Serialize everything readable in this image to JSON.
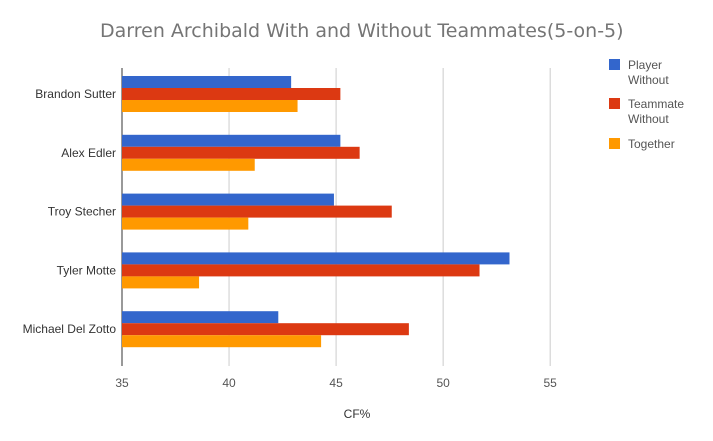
{
  "chart_data": {
    "type": "bar",
    "orientation": "horizontal",
    "title": "Darren Archibald With and Without Teammates(5-on-5)",
    "xlabel": "CF%",
    "ylabel": "",
    "xlim": [
      35,
      57
    ],
    "xticks": [
      35,
      40,
      45,
      50,
      55
    ],
    "grid": true,
    "legend_position": "right",
    "categories": [
      "Brandon Sutter",
      "Alex Edler",
      "Troy Stecher",
      "Tyler Motte",
      "Michael Del Zotto"
    ],
    "series": [
      {
        "name": "Player Without",
        "legend_lines": [
          "Player",
          "Without"
        ],
        "color": "#3366cc",
        "values": [
          42.9,
          45.2,
          44.9,
          53.1,
          42.3
        ]
      },
      {
        "name": "Teammate Without",
        "legend_lines": [
          "Teammate",
          "Without"
        ],
        "color": "#dc3912",
        "values": [
          45.2,
          46.1,
          47.6,
          51.7,
          48.4
        ]
      },
      {
        "name": "Together",
        "legend_lines": [
          "Together"
        ],
        "color": "#ff9900",
        "values": [
          43.2,
          41.2,
          40.9,
          38.6,
          44.3
        ]
      }
    ]
  }
}
